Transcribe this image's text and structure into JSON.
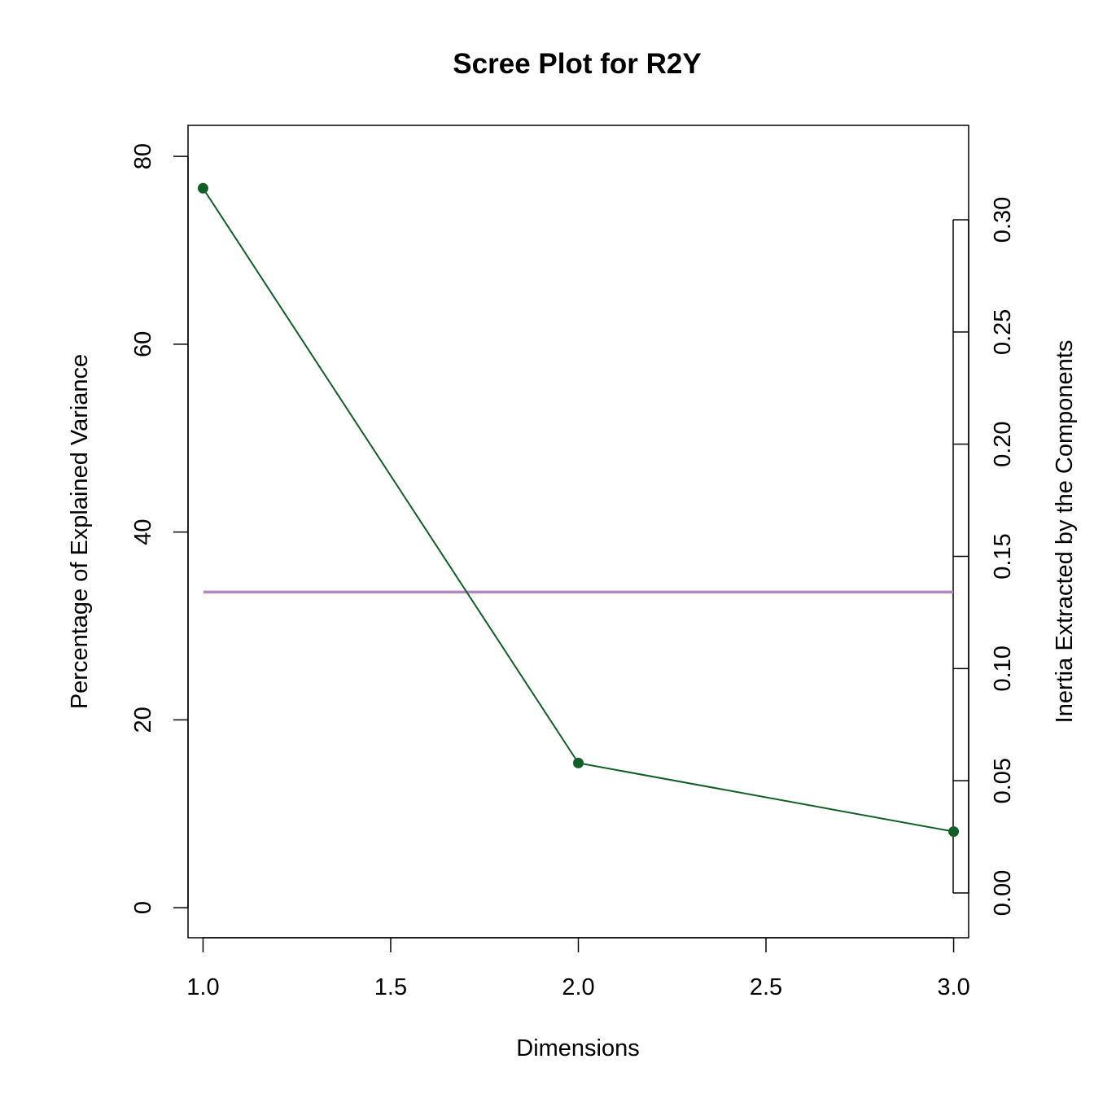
{
  "chart_data": {
    "type": "line",
    "title": "Scree Plot for R2Y",
    "xlabel": "Dimensions",
    "ylabel": "Percentage of Explained Variance",
    "y2label": "Inertia Extracted by the Components",
    "x": [
      1,
      2,
      3
    ],
    "values": [
      76.6,
      15.4,
      8.1
    ],
    "xlim": [
      0.96,
      3.04
    ],
    "ylim": [
      -3.2,
      83.3
    ],
    "xticks": [
      1.0,
      1.5,
      2.0,
      2.5,
      3.0
    ],
    "xtick_labels": [
      "1.0",
      "1.5",
      "2.0",
      "2.5",
      "3.0"
    ],
    "yticks": [
      0,
      20,
      40,
      60,
      80
    ],
    "ytick_labels": [
      "0",
      "20",
      "40",
      "60",
      "80"
    ],
    "y2lim": [
      0.0,
      0.3
    ],
    "y2ticks": [
      0.0,
      0.05,
      0.1,
      0.15,
      0.2,
      0.25,
      0.3
    ],
    "y2tick_labels": [
      "0.00",
      "0.05",
      "0.10",
      "0.15",
      "0.20",
      "0.25",
      "0.30"
    ],
    "reference_line_y": 33.6,
    "line_color": "#115E27",
    "reference_color": "#B286C0",
    "grid": false,
    "legend": "none"
  }
}
